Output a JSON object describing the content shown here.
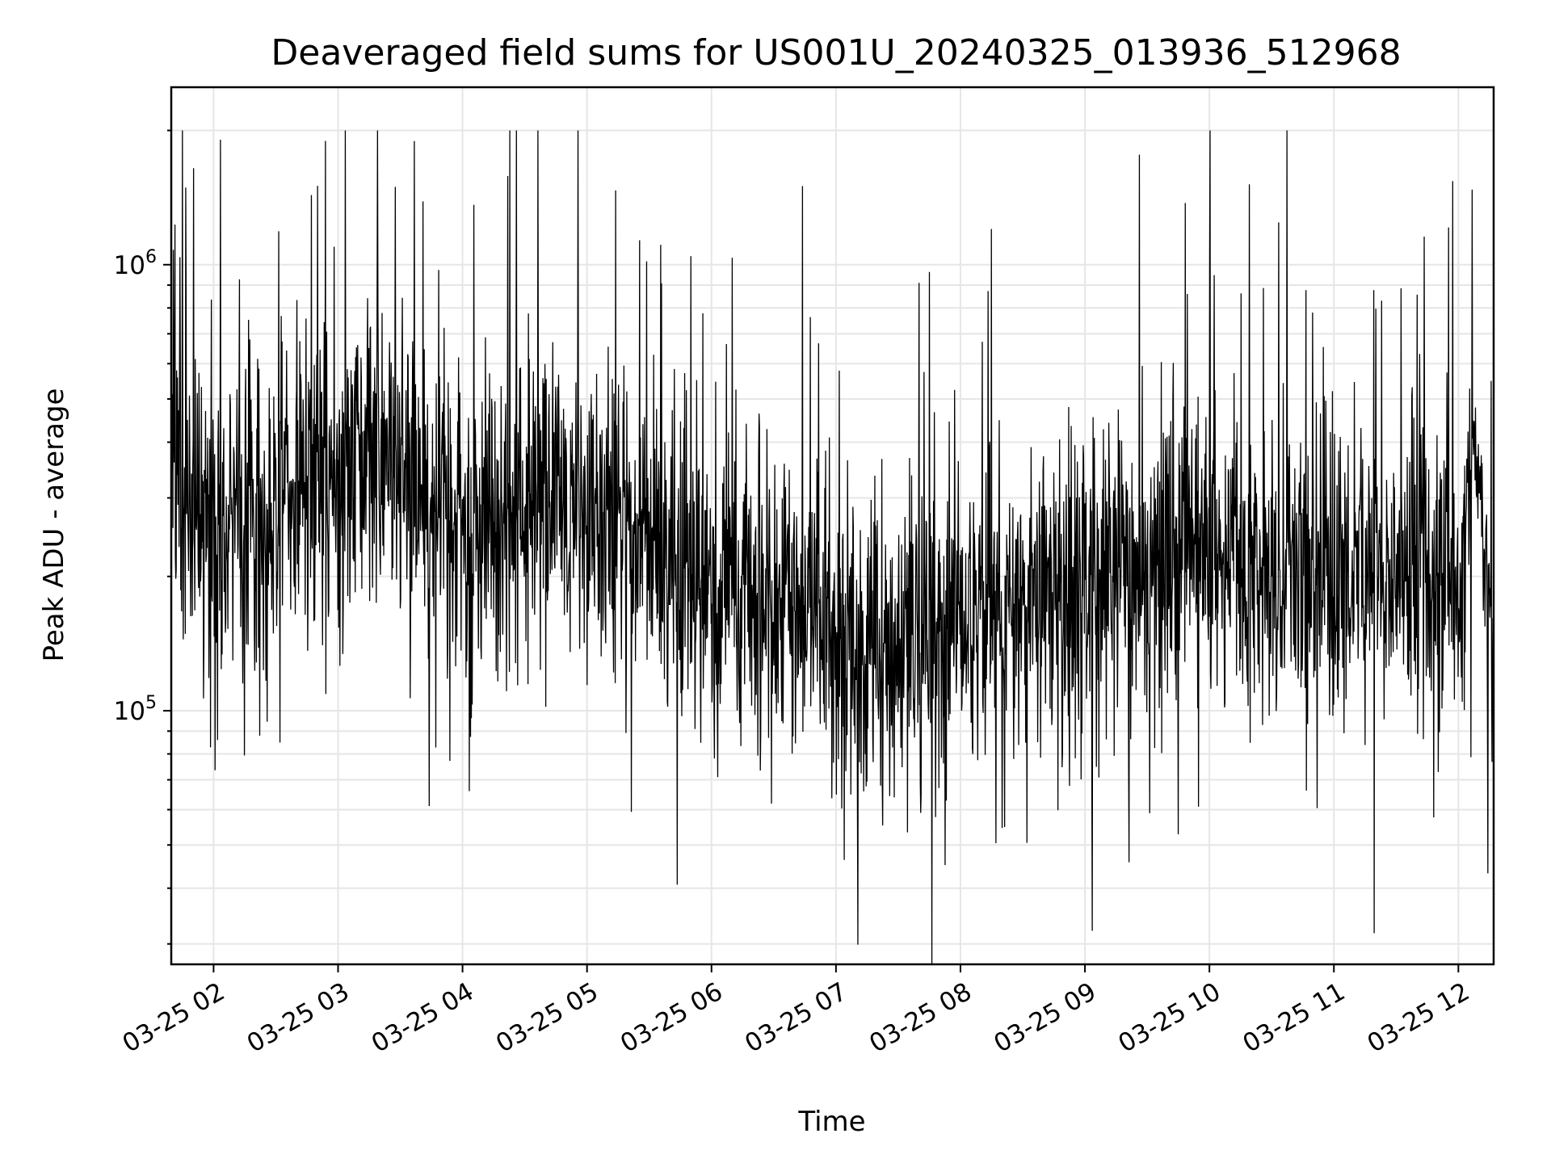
{
  "chart_data": {
    "type": "line",
    "title": "Deaveraged field sums for US001U_20240325_013936_512968",
    "xlabel": "Time",
    "ylabel": "Peak ADU - average",
    "yscale": "log",
    "ylim": [
      27000,
      2500000
    ],
    "y_ticks": [
      {
        "value": 100000,
        "base": "10",
        "exp": "5"
      },
      {
        "value": 1000000,
        "base": "10",
        "exp": "6"
      }
    ],
    "x_range": [
      "2024-03-25T01:39:36",
      "2024-03-25T12:17:00"
    ],
    "x_ticks": [
      {
        "value": "2024-03-25T02:00:00",
        "label": "03-25 02"
      },
      {
        "value": "2024-03-25T03:00:00",
        "label": "03-25 03"
      },
      {
        "value": "2024-03-25T04:00:00",
        "label": "03-25 04"
      },
      {
        "value": "2024-03-25T05:00:00",
        "label": "03-25 05"
      },
      {
        "value": "2024-03-25T06:00:00",
        "label": "03-25 06"
      },
      {
        "value": "2024-03-25T07:00:00",
        "label": "03-25 07"
      },
      {
        "value": "2024-03-25T08:00:00",
        "label": "03-25 08"
      },
      {
        "value": "2024-03-25T09:00:00",
        "label": "03-25 09"
      },
      {
        "value": "2024-03-25T10:00:00",
        "label": "03-25 10"
      },
      {
        "value": "2024-03-25T11:00:00",
        "label": "03-25 11"
      },
      {
        "value": "2024-03-25T12:00:00",
        "label": "03-25 12"
      }
    ],
    "grid": true,
    "series_color": "#000000",
    "series": [
      {
        "x": [
          "2024-03-25T01:39:36",
          "2024-03-25T01:45:00",
          "2024-03-25T02:00:00",
          "2024-03-25T02:20:00",
          "2024-03-25T02:40:00",
          "2024-03-25T03:00:00",
          "2024-03-25T03:15:00",
          "2024-03-25T03:30:00",
          "2024-03-25T04:00:00",
          "2024-03-25T04:20:00",
          "2024-03-25T04:40:00",
          "2024-03-25T05:00:00",
          "2024-03-25T05:30:00",
          "2024-03-25T06:00:00",
          "2024-03-25T06:30:00",
          "2024-03-25T07:00:00",
          "2024-03-25T07:30:00",
          "2024-03-25T08:00:00",
          "2024-03-25T08:30:00",
          "2024-03-25T09:00:00",
          "2024-03-25T09:30:00",
          "2024-03-25T10:00:00",
          "2024-03-25T10:30:00",
          "2024-03-25T11:00:00",
          "2024-03-25T11:30:00",
          "2024-03-25T12:00:00",
          "2024-03-25T12:08:00",
          "2024-03-25T12:17:00"
        ],
        "y": [
          500000,
          300000,
          260000,
          260000,
          330000,
          300000,
          380000,
          330000,
          250000,
          270000,
          320000,
          260000,
          240000,
          200000,
          170000,
          140000,
          140000,
          160000,
          170000,
          200000,
          210000,
          230000,
          200000,
          200000,
          200000,
          200000,
          450000,
          130000
        ],
        "spread": [
          3.2,
          3.0,
          2.8,
          2.6,
          2.6,
          2.8,
          2.6,
          2.5,
          2.6,
          2.6,
          2.5,
          2.6,
          2.8,
          2.8,
          2.7,
          2.7,
          2.6,
          2.6,
          2.6,
          2.7,
          2.6,
          2.6,
          2.7,
          2.6,
          2.6,
          2.7,
          1.8,
          1.0
        ],
        "min_value": 27000,
        "max_value": 2000000
      }
    ]
  }
}
